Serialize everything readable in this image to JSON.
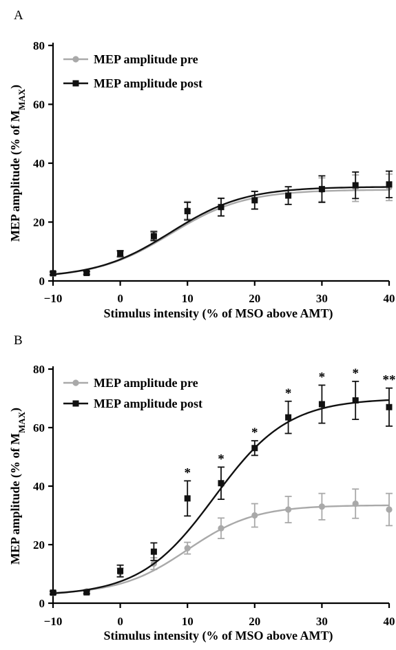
{
  "colors": {
    "pre": "#a9a9a9",
    "post": "#111111"
  },
  "chart_data": [
    {
      "panel_label": "A",
      "type": "scatter",
      "xlabel": "Stimulus intensity (% of MSO above AMT)",
      "ylabel": {
        "main": "MEP amplitude (% of M",
        "sub": "MAX",
        "close": ")"
      },
      "xlim": [
        -10,
        40
      ],
      "ylim": [
        0,
        80
      ],
      "xticks": [
        -10,
        0,
        10,
        20,
        30,
        40
      ],
      "yticks": [
        0,
        20,
        40,
        60,
        80
      ],
      "legend_position": "top-left",
      "legend": [
        "MEP amplitude pre",
        "MEP amplitude post"
      ],
      "x": [
        -10,
        -5,
        0,
        5,
        10,
        15,
        20,
        25,
        30,
        35,
        40
      ],
      "series": [
        {
          "name": "MEP amplitude pre",
          "marker": "circle",
          "values": [
            2.5,
            2.8,
            9.0,
            15.5,
            24.0,
            25.0,
            27.5,
            29.0,
            31.0,
            31.5,
            31.8
          ],
          "errors": [
            0.5,
            0.5,
            1.0,
            1.5,
            3.0,
            3.0,
            3.0,
            3.0,
            4.0,
            4.5,
            4.5
          ],
          "fit": {
            "min": 1.0,
            "max": 31.0,
            "x50": 7.5,
            "slope": 5.5
          }
        },
        {
          "name": "MEP amplitude post",
          "marker": "square",
          "values": [
            2.6,
            2.7,
            9.3,
            15.2,
            23.7,
            25.1,
            27.4,
            29.0,
            31.2,
            32.5,
            32.8
          ],
          "errors": [
            0.5,
            0.5,
            1.0,
            1.5,
            3.0,
            3.0,
            3.0,
            3.0,
            4.5,
            4.5,
            4.5
          ],
          "fit": {
            "min": 1.0,
            "max": 32.0,
            "x50": 7.5,
            "slope": 5.5
          }
        }
      ],
      "annotations": []
    },
    {
      "panel_label": "B",
      "type": "scatter",
      "xlabel": "Stimulus intensity (% of MSO above AMT)",
      "ylabel": {
        "main": "MEP amplitude (% of M",
        "sub": "MAX",
        "close": ")"
      },
      "xlim": [
        -10,
        40
      ],
      "ylim": [
        0,
        80
      ],
      "xticks": [
        -10,
        0,
        10,
        20,
        30,
        40
      ],
      "yticks": [
        0,
        20,
        40,
        60,
        80
      ],
      "legend_position": "top-left",
      "legend": [
        "MEP amplitude pre",
        "MEP amplitude post"
      ],
      "x": [
        -10,
        -5,
        0,
        5,
        10,
        15,
        20,
        25,
        30,
        35,
        40
      ],
      "series": [
        {
          "name": "MEP amplitude pre",
          "marker": "circle",
          "values": [
            3.5,
            4.0,
            10.5,
            13.5,
            18.8,
            25.6,
            30.0,
            32.0,
            33.0,
            34.0,
            32.0
          ],
          "errors": [
            0.5,
            0.5,
            1.5,
            2.0,
            2.0,
            3.5,
            4.0,
            4.5,
            4.5,
            5.0,
            5.5
          ],
          "fit": {
            "min": 3.0,
            "max": 33.5,
            "x50": 10.0,
            "slope": 5.0
          }
        },
        {
          "name": "MEP amplitude post",
          "marker": "square",
          "values": [
            3.6,
            3.7,
            11.0,
            17.6,
            35.8,
            41.0,
            53.0,
            63.5,
            68.0,
            69.3,
            67.0
          ],
          "errors": [
            0.5,
            0.5,
            2.0,
            3.0,
            6.0,
            5.5,
            2.5,
            5.5,
            6.5,
            6.5,
            6.5
          ],
          "fit": {
            "min": 2.5,
            "max": 70.0,
            "x50": 14.0,
            "slope": 5.5
          }
        }
      ],
      "annotations": [
        {
          "x": 10,
          "text": "*"
        },
        {
          "x": 15,
          "text": "*"
        },
        {
          "x": 20,
          "text": "*"
        },
        {
          "x": 25,
          "text": "*"
        },
        {
          "x": 30,
          "text": "*"
        },
        {
          "x": 35,
          "text": "*"
        },
        {
          "x": 40,
          "text": "**"
        }
      ]
    }
  ]
}
